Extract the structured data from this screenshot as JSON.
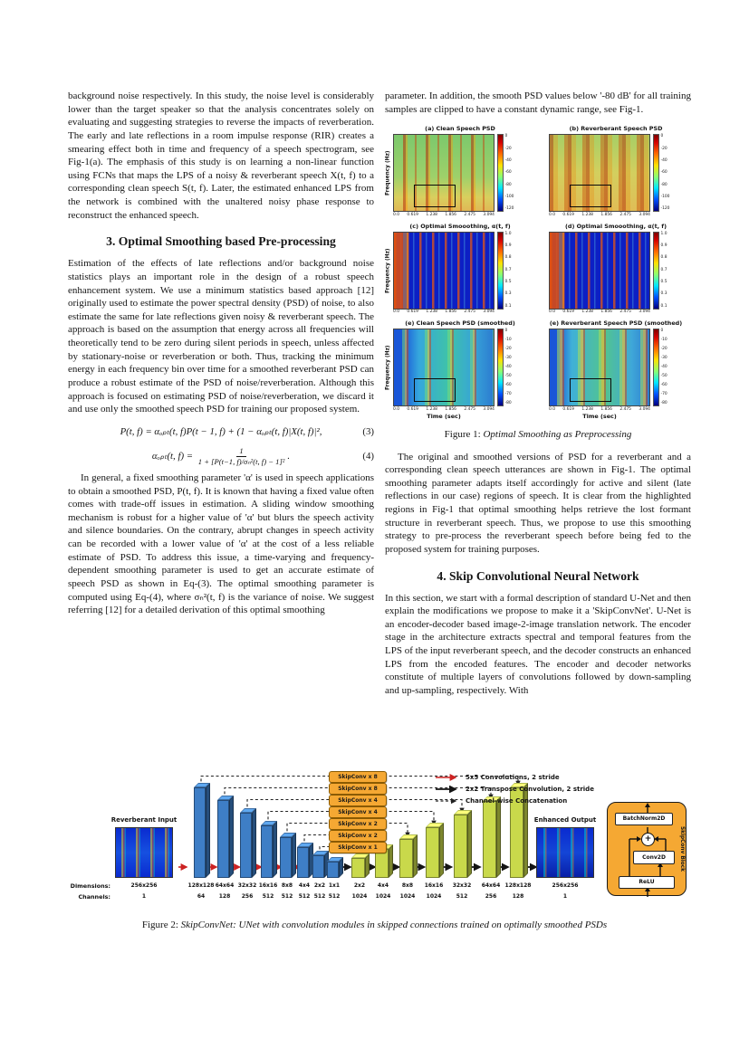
{
  "page": {
    "background": "#ffffff"
  },
  "left_column": {
    "para1": "background noise respectively. In this study, the noise level is considerably lower than the target speaker so that the analysis concentrates solely on evaluating and suggesting strategies to reverse the impacts of reverberation. The early and late reflections in a room impulse response (RIR) creates a smearing effect both in time and frequency of a speech spectrogram, see Fig-1(a). The emphasis of this study is on learning a non-linear function using FCNs that maps the LPS of a noisy & reverberant speech X(t, f) to a corresponding clean speech S(t, f). Later, the estimated enhanced LPS from the network is combined with the unaltered noisy phase response to reconstruct the enhanced speech.",
    "section3_heading": "3. Optimal Smoothing based Pre-processing",
    "para2": "Estimation of the effects of late reflections and/or background noise statistics plays an important role in the design of a robust speech enhancement system. We use a minimum statistics based approach [12] originally used to estimate the power spectral density (PSD) of noise, to also estimate the same for late reflections given noisy & reverberant speech. The approach is based on the assumption that energy across all frequencies will theoretically tend to be zero during silent periods in speech, unless affected by stationary-noise or reverberation or both. Thus, tracking the minimum energy in each frequency bin over time for a smoothed reverberant PSD can produce a robust estimate of the PSD of noise/reverberation. Although this approach is focused on estimating PSD of noise/reverberation, we discard it and use only the smoothed speech PSD for training our proposed system.",
    "eq3": {
      "body": "P(t, f) = αₒₚₜ(t, f)P(t − 1, f) + (1 − αₒₚₜ(t, f)|X(t, f)|²,",
      "number": "(3)"
    },
    "eq4": {
      "lhs": "αₒₚₜ(t, f) =",
      "numerator": "1",
      "denominator": "1 + [P(t−1, f)/σₙ²(t, f) − 1]²",
      "trailer": ".",
      "number": "(4)"
    },
    "para3": "In general, a fixed smoothing parameter 'α' is used in speech applications to obtain a smoothed PSD, P(t, f). It is known that having a fixed value often comes with trade-off issues in estimation. A sliding window smoothing mechanism is robust for a higher value of 'α' but blurs the speech activity and silence boundaries. On the contrary, abrupt changes in speech activity can be recorded with a lower value of 'α' at the cost of a less reliable estimate of PSD. To address this issue, a time-varying and frequency-dependent smoothing parameter is used to get an accurate estimate of speech PSD as shown in Eq-(3). The optimal smoothing parameter is computed using Eq-(4), where σₙ²(t, f) is the variance of noise. We suggest referring [12] for a detailed derivation of this optimal smoothing"
  },
  "right_column": {
    "para1": "parameter. In addition, the smooth PSD values below '-80 dB' for all training samples are clipped to have a constant dynamic range, see Fig-1.",
    "figure1": {
      "ylabel": "Frequency (Hz)",
      "xlabel": "Time (sec)",
      "xticks": [
        "0.0",
        "0.619",
        "1.238",
        "1.856",
        "2.475",
        "3.094"
      ],
      "panels": [
        {
          "label": "(a) Clean Speech PSD",
          "css": "psd-a",
          "highlight": true,
          "colorbar_ticks": [
            "0",
            "-20",
            "-40",
            "-60",
            "-80",
            "-100",
            "-120"
          ]
        },
        {
          "label": "(b) Reverberant Speech PSD",
          "css": "psd-b",
          "highlight": true,
          "colorbar_ticks": [
            "0",
            "-20",
            "-40",
            "-60",
            "-80",
            "-100",
            "-120"
          ]
        },
        {
          "label": "(c) Optimal Smooothing, α(t, f)",
          "css": "alpha",
          "highlight": false,
          "colorbar_ticks": [
            "1.0",
            "0.9",
            "0.8",
            "0.7",
            "0.5",
            "0.3",
            "0.1"
          ]
        },
        {
          "label": "(d) Optimal Smooothing, α(t, f)",
          "css": "alpha",
          "highlight": false,
          "colorbar_ticks": [
            "1.0",
            "0.9",
            "0.8",
            "0.7",
            "0.5",
            "0.3",
            "0.1"
          ]
        },
        {
          "label": "(e) Clean Speech PSD (smoothed)",
          "css": "smooth-e",
          "highlight": true,
          "colorbar_ticks": [
            "0",
            "-10",
            "-20",
            "-30",
            "-40",
            "-50",
            "-60",
            "-70",
            "-80"
          ]
        },
        {
          "label": "(e) Reverberant Speech PSD (smoothed)",
          "css": "smooth-f",
          "highlight": true,
          "colorbar_ticks": [
            "0",
            "-10",
            "-20",
            "-30",
            "-40",
            "-50",
            "-60",
            "-70",
            "-80"
          ]
        }
      ],
      "caption_prefix": "Figure 1:",
      "caption_text": "Optimal Smoothing as Preprocessing"
    },
    "para2": "The original and smoothed versions of PSD for a reverberant and a corresponding clean speech utterances are shown in Fig-1. The optimal smoothing parameter adapts itself accordingly for active and silent (late reflections in our case) regions of speech. It is clear from the highlighted regions in Fig-1 that optimal smoothing helps retrieve the lost formant structure in reverberant speech. Thus, we propose to use this smoothing strategy to pre-process the reverberant speech before being fed to the proposed system for training purposes.",
    "section4_heading": "4. Skip Convolutional Neural Network",
    "para3": "In this section, we start with a formal description of standard U-Net and then explain the modifications we propose to make it a 'SkipConvNet'. U-Net is an encoder-decoder based image-2-image translation network. The encoder stage in the architecture extracts spectral and temporal features from the LPS of the input reverberant speech, and the decoder constructs an enhanced LPS from the encoded features. The encoder and decoder networks constitute of multiple layers of convolutions followed by down-sampling and up-sampling, respectively. With"
  },
  "figure2": {
    "input_label": "Reverberant Input",
    "output_label": "Enhanced Output",
    "dims_row_label": "Dimensions:",
    "channels_row_label": "Channels:",
    "columns": [
      {
        "dim": "256x256",
        "ch": "1",
        "type": "input"
      },
      {
        "dim": "128x128",
        "ch": "64",
        "type": "enc"
      },
      {
        "dim": "64x64",
        "ch": "128",
        "type": "enc"
      },
      {
        "dim": "32x32",
        "ch": "256",
        "type": "enc"
      },
      {
        "dim": "16x16",
        "ch": "512",
        "type": "enc"
      },
      {
        "dim": "8x8",
        "ch": "512",
        "type": "enc"
      },
      {
        "dim": "4x4",
        "ch": "512",
        "type": "enc"
      },
      {
        "dim": "2x2",
        "ch": "512",
        "type": "enc"
      },
      {
        "dim": "1x1",
        "ch": "512",
        "type": "enc"
      },
      {
        "dim": "2x2",
        "ch": "1024",
        "type": "dec"
      },
      {
        "dim": "4x4",
        "ch": "1024",
        "type": "dec"
      },
      {
        "dim": "8x8",
        "ch": "1024",
        "type": "dec"
      },
      {
        "dim": "16x16",
        "ch": "1024",
        "type": "dec"
      },
      {
        "dim": "32x32",
        "ch": "512",
        "type": "dec"
      },
      {
        "dim": "64x64",
        "ch": "256",
        "type": "dec"
      },
      {
        "dim": "128x128",
        "ch": "128",
        "type": "dec"
      },
      {
        "dim": "256x256",
        "ch": "1",
        "type": "output"
      }
    ],
    "skip_labels": [
      "SkipConv x 8",
      "SkipConv x 8",
      "SkipConv x 4",
      "SkipConv x 4",
      "SkipConv x 2",
      "SkipConv x 2",
      "SkipConv x 1"
    ],
    "legend": [
      {
        "label": "5x5 Convolutions, 2 stride",
        "style": "red-solid"
      },
      {
        "label": "2x2 Transpose Convolution, 2 stride",
        "style": "black-solid"
      },
      {
        "label": "Channel-wise Concatenation",
        "style": "black-dashed"
      }
    ],
    "detail": {
      "batchnorm": "BatchNorm2D",
      "plus": "+",
      "conv": "Conv2D",
      "relu": "ReLU",
      "side_label": "SkipConv Block"
    },
    "caption_prefix": "Figure 2:",
    "caption_text": "SkipConvNet: UNet with convolution modules in skipped connections trained on optimally smoothed PSDs",
    "colors": {
      "encoder_block": "#3E7EC6",
      "decoder_block": "#C9D94B",
      "skipconv_box": "#F5A833",
      "conv_arrow": "#CC2222",
      "transpose_arrow": "#141414"
    }
  }
}
